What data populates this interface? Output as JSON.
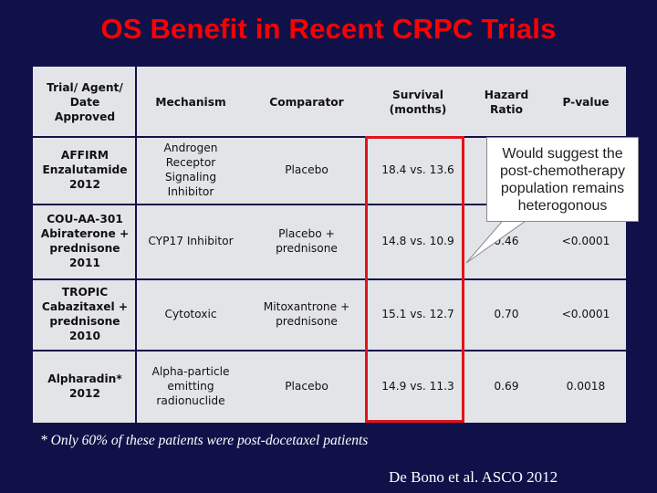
{
  "slide": {
    "title": "OS Benefit in Recent CRPC Trials",
    "footnote": "* Only 60% of these patients were post-docetaxel patients",
    "citation": "De Bono et al. ASCO 2012",
    "callout": "Would suggest the post-chemotherapy population remains heterogonous",
    "colors": {
      "background": "#11114a",
      "title": "#ff0000",
      "highlight_border": "#e0141c",
      "table_fill": "#e3e4e8"
    }
  },
  "table": {
    "headers": {
      "trial": "Trial/ Agent/ Date Approved",
      "mechanism": "Mechanism",
      "comparator": "Comparator",
      "survival": "Survival (months)",
      "hr": "Hazard Ratio",
      "pvalue": "P-value"
    },
    "rows": [
      {
        "trial": "AFFIRM Enzalutamide 2012",
        "mechanism": "Androgen Receptor Signaling Inhibitor",
        "comparator": "Placebo",
        "survival": "18.4 vs. 13.6",
        "hr": "",
        "pvalue": ""
      },
      {
        "trial": "COU-AA-301 Abiraterone + prednisone 2011",
        "mechanism": "CYP17 Inhibitor",
        "comparator": "Placebo + prednisone",
        "survival": "14.8 vs. 10.9",
        "hr": "0.46",
        "pvalue": "<0.0001"
      },
      {
        "trial": "TROPIC Cabazitaxel + prednisone 2010",
        "mechanism": "Cytotoxic",
        "comparator": "Mitoxantrone + prednisone",
        "survival": "15.1 vs. 12.7",
        "hr": "0.70",
        "pvalue": "<0.0001"
      },
      {
        "trial": "Alpharadin* 2012",
        "mechanism": "Alpha-particle emitting radionuclide",
        "comparator": "Placebo",
        "survival": "14.9 vs. 11.3",
        "hr": "0.69",
        "pvalue": "0.0018"
      }
    ]
  }
}
